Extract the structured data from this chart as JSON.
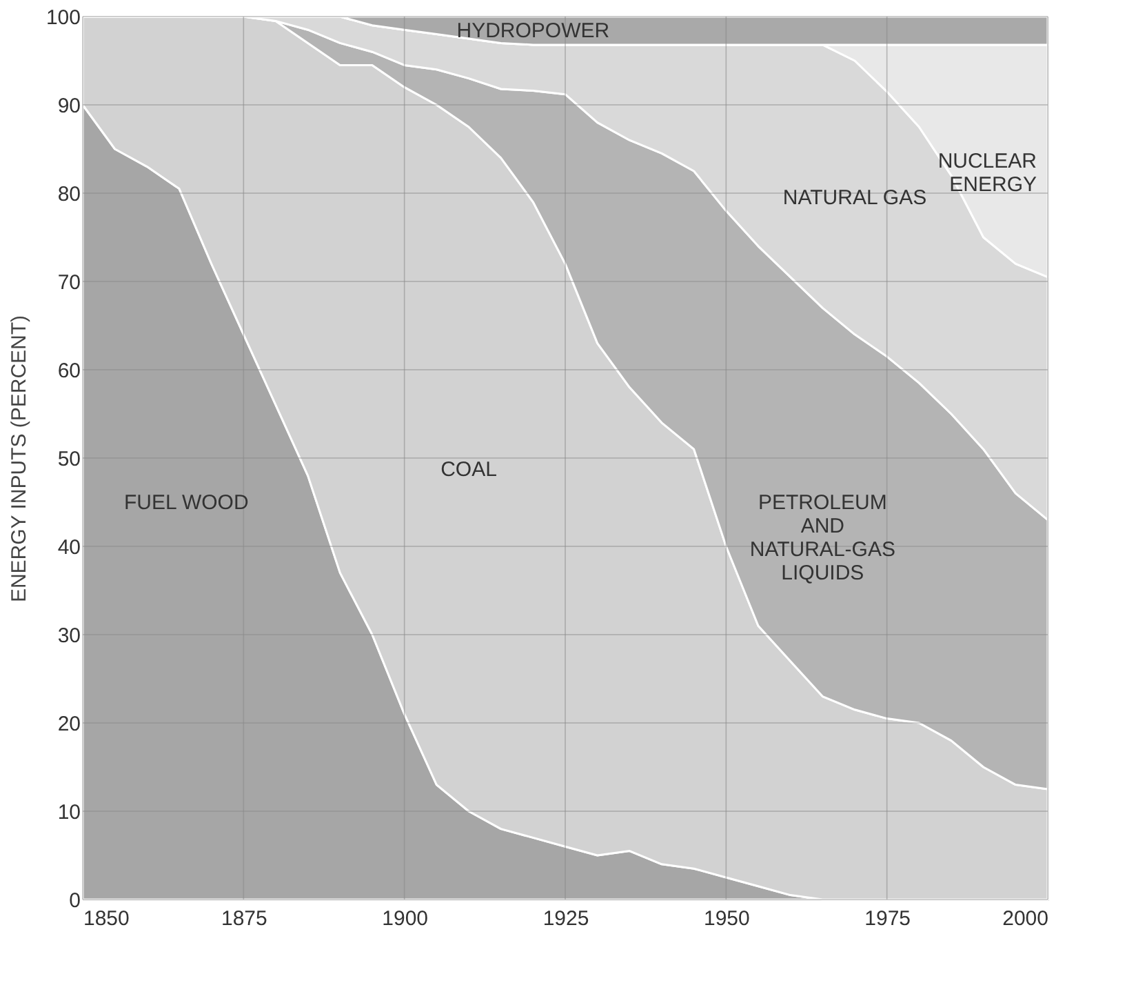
{
  "chart_data": {
    "type": "area",
    "stacked": true,
    "ylabel": "ENERGY INPUTS (PERCENT)",
    "x": [
      1850,
      1855,
      1860,
      1865,
      1870,
      1875,
      1880,
      1885,
      1890,
      1895,
      1900,
      1905,
      1910,
      1915,
      1920,
      1925,
      1930,
      1935,
      1940,
      1945,
      1950,
      1955,
      1960,
      1965,
      1970,
      1975,
      1980,
      1985,
      1990,
      1995,
      2000
    ],
    "xlim": [
      1850,
      2000
    ],
    "xticks": [
      1850,
      1875,
      1900,
      1925,
      1950,
      1975,
      2000
    ],
    "ylim": [
      0,
      100
    ],
    "yticks": [
      0,
      10,
      20,
      30,
      40,
      50,
      60,
      70,
      80,
      90,
      100
    ],
    "grid": true,
    "legend": false,
    "series": [
      {
        "name": "FUEL WOOD",
        "color": "#a6a6a6",
        "values": [
          90,
          85,
          83,
          80.5,
          72,
          64,
          56,
          48,
          37,
          30,
          21,
          13,
          10,
          8,
          7,
          6,
          5,
          5.5,
          4,
          3.5,
          2.5,
          1.5,
          0.5,
          0,
          0,
          0,
          0,
          0,
          0,
          0,
          0
        ]
      },
      {
        "name": "COAL",
        "color": "#d2d2d2",
        "values": [
          10,
          15,
          17,
          19.5,
          28,
          36,
          43.5,
          49,
          57.5,
          64.5,
          71,
          77,
          77.5,
          76,
          72,
          66,
          58,
          52.5,
          50,
          47.5,
          37.5,
          29.5,
          26.5,
          23,
          21.5,
          20.5,
          20,
          18,
          15,
          13,
          12.5
        ]
      },
      {
        "name": "PETROLEUM\nAND\nNATURAL-GAS\nLIQUIDS",
        "color": "#b4b4b4",
        "values": [
          0,
          0,
          0,
          0,
          0,
          0,
          0,
          1.5,
          2.5,
          1.5,
          2.5,
          4,
          5.5,
          7.8,
          12.6,
          19.2,
          25,
          28,
          30.5,
          31.5,
          38,
          43,
          43.5,
          44,
          42.5,
          41,
          38.5,
          37,
          36,
          33,
          30.5
        ]
      },
      {
        "name": "NATURAL GAS",
        "color": "#d9d9d9",
        "values": [
          0,
          0,
          0,
          0,
          0,
          0,
          0.5,
          1.5,
          3,
          3,
          4,
          4,
          4.5,
          5.2,
          5.2,
          5.6,
          8.8,
          10.8,
          12.3,
          14.3,
          18.8,
          22.8,
          26.3,
          29.8,
          31,
          30,
          29,
          27,
          24,
          26,
          27.5
        ]
      },
      {
        "name": "NUCLEAR\nENERGY",
        "color": "#e8e8e8",
        "values": [
          0,
          0,
          0,
          0,
          0,
          0,
          0,
          0,
          0,
          0,
          0,
          0,
          0,
          0,
          0,
          0,
          0,
          0,
          0,
          0,
          0,
          0,
          0,
          0,
          1.8,
          5.3,
          9.3,
          14.8,
          21.8,
          24.8,
          26.3
        ]
      },
      {
        "name": "HYDROPOWER",
        "color": "#a9a9a9",
        "values": [
          0,
          0,
          0,
          0,
          0,
          0,
          0,
          0,
          0,
          1,
          1.5,
          2,
          2.5,
          3,
          3.2,
          3.2,
          3.2,
          3.2,
          3.2,
          3.2,
          3.2,
          3.2,
          3.2,
          3.2,
          3.2,
          3.2,
          3.2,
          3.2,
          3.2,
          3.2,
          3.2
        ]
      }
    ]
  }
}
